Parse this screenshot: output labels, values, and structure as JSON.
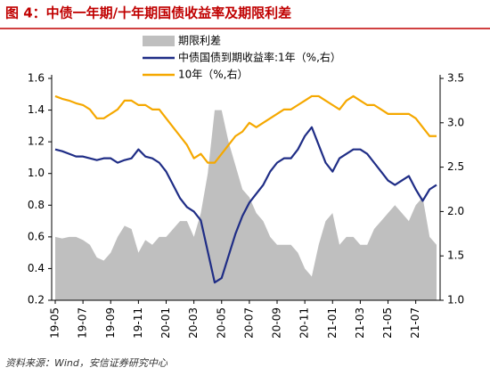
{
  "chart_data": {
    "type": "line",
    "title": "图 4：中债一年期/十年期国债收益率及期限利差",
    "source": "资料来源：Wind，安信证券研究中心",
    "categories": [
      "19-05",
      null,
      null,
      null,
      "19-07",
      null,
      null,
      null,
      "19-09",
      null,
      null,
      null,
      "19-11",
      null,
      null,
      null,
      "20-01",
      null,
      null,
      null,
      "20-03",
      null,
      null,
      null,
      "20-05",
      null,
      null,
      null,
      "20-07",
      null,
      null,
      null,
      "20-09",
      null,
      null,
      null,
      "20-11",
      null,
      null,
      null,
      "21-01",
      null,
      null,
      null,
      "21-03",
      null,
      null,
      null,
      "21-05",
      null,
      null,
      null,
      "21-07",
      null,
      null,
      null
    ],
    "series": [
      {
        "name": "期限利差",
        "color": "#bfbfbf",
        "kind": "area",
        "values": [
          0.6,
          0.59,
          0.6,
          0.6,
          0.58,
          0.55,
          0.47,
          0.45,
          0.5,
          0.6,
          0.67,
          0.65,
          0.5,
          0.58,
          0.55,
          0.6,
          0.6,
          0.65,
          0.7,
          0.7,
          0.6,
          0.75,
          1.0,
          1.4,
          1.4,
          1.2,
          1.05,
          0.9,
          0.85,
          0.75,
          0.7,
          0.6,
          0.55,
          0.55,
          0.55,
          0.5,
          0.4,
          0.35,
          0.55,
          0.7,
          0.75,
          0.55,
          0.6,
          0.6,
          0.55,
          0.55,
          0.65,
          0.7,
          0.75,
          0.8,
          0.75,
          0.7,
          0.8,
          0.85,
          0.6,
          0.55
        ]
      },
      {
        "name": "中债国债到期收益率:1年（%,右）",
        "color": "#1f2d86",
        "axis": "y2",
        "values": [
          2.7,
          2.68,
          2.65,
          2.62,
          2.62,
          2.6,
          2.58,
          2.6,
          2.6,
          2.55,
          2.58,
          2.6,
          2.7,
          2.62,
          2.6,
          2.55,
          2.45,
          2.3,
          2.15,
          2.05,
          2.0,
          1.9,
          1.55,
          1.2,
          1.25,
          1.5,
          1.75,
          1.95,
          2.1,
          2.2,
          2.3,
          2.45,
          2.55,
          2.6,
          2.6,
          2.7,
          2.85,
          2.95,
          2.75,
          2.55,
          2.45,
          2.6,
          2.65,
          2.7,
          2.7,
          2.65,
          2.55,
          2.45,
          2.35,
          2.3,
          2.35,
          2.4,
          2.25,
          2.12,
          2.25,
          2.3
        ]
      },
      {
        "name": "10年（%,右）",
        "color": "#f5a800",
        "axis": "y2",
        "values": [
          3.3,
          3.27,
          3.25,
          3.22,
          3.2,
          3.15,
          3.05,
          3.05,
          3.1,
          3.15,
          3.25,
          3.25,
          3.2,
          3.2,
          3.15,
          3.15,
          3.05,
          2.95,
          2.85,
          2.75,
          2.6,
          2.65,
          2.55,
          2.55,
          2.65,
          2.75,
          2.85,
          2.9,
          3.0,
          2.95,
          3.0,
          3.05,
          3.1,
          3.15,
          3.15,
          3.2,
          3.25,
          3.3,
          3.3,
          3.25,
          3.2,
          3.15,
          3.25,
          3.3,
          3.25,
          3.2,
          3.2,
          3.15,
          3.1,
          3.1,
          3.1,
          3.1,
          3.05,
          2.95,
          2.85,
          2.85
        ]
      }
    ],
    "ylim": [
      0.2,
      1.6
    ],
    "yticks": [
      0.2,
      0.4,
      0.6,
      0.8,
      {
        "value": 1,
        "label": "1.0"
      },
      1.2,
      1.4,
      1.6
    ],
    "y2lim": [
      1,
      3.5
    ],
    "y2ticks": [
      {
        "value": 1,
        "label": "1.0"
      },
      1.5,
      {
        "value": 2,
        "label": "2.0"
      },
      2.5,
      {
        "value": 3,
        "label": "3.0"
      },
      3.5
    ]
  }
}
